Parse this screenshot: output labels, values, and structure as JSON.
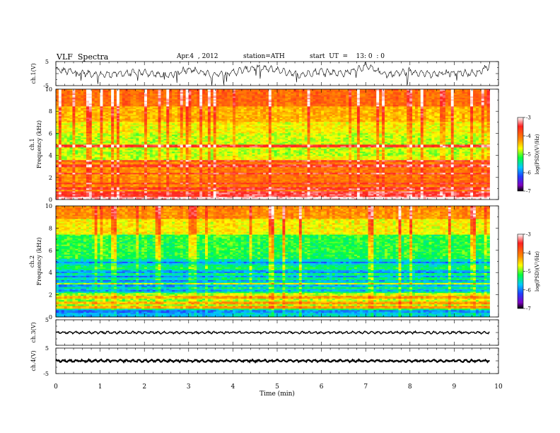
{
  "header": {
    "title": "VLF  Spectra",
    "date": "Apr.4  , 2012",
    "station": "station=ATH",
    "start": "start  UT  =    13: 0  : 0"
  },
  "colors": {
    "trace": "#000000",
    "background": "#ffffff"
  },
  "chart_data": [
    {
      "type": "line",
      "panel": "ch1-waveform",
      "ylabel": "ch.1(V)",
      "ylim": [
        -5,
        5
      ],
      "yticks": [
        "5",
        "-5"
      ],
      "x": [
        0,
        0.5,
        1,
        1.5,
        2,
        2.5,
        3,
        3.5,
        4,
        4.5,
        5,
        5.5,
        6,
        6.5,
        7,
        7.5,
        8,
        8.5,
        9,
        9.5,
        9.8
      ],
      "values": [
        1.5,
        0.5,
        -0.5,
        0,
        0.5,
        -1,
        2,
        -0.5,
        0.5,
        2.5,
        1.5,
        -0.5,
        1,
        0,
        3,
        -0.5,
        1,
        -0.5,
        0.5,
        0,
        3.5
      ]
    },
    {
      "type": "heatmap",
      "panel": "ch1-spectrogram",
      "ylabel": "ch.1\nFrequency  (kHz)",
      "ylim": [
        0,
        10
      ],
      "yticks": [
        "0",
        "2",
        "4",
        "6",
        "8",
        "10"
      ],
      "colorbar": {
        "label": "log(PSD)(V²/Hz)",
        "range": [
          -7,
          -3
        ],
        "ticks": [
          "-3",
          "-4",
          "-5",
          "-6",
          "-7"
        ]
      }
    },
    {
      "type": "heatmap",
      "panel": "ch2-spectrogram",
      "ylabel": "ch.2\nFrequency  (kHz)",
      "ylim": [
        0,
        10
      ],
      "yticks": [
        "0",
        "2",
        "4",
        "6",
        "8",
        "10"
      ],
      "colorbar": {
        "label": "log(PSD)(V²/Hz)",
        "range": [
          -7,
          -3
        ],
        "ticks": [
          "-3",
          "-4",
          "-5",
          "-6",
          "-7"
        ]
      }
    },
    {
      "type": "line",
      "panel": "ch3-waveform",
      "ylabel": "ch.3(V)",
      "ylim": [
        -5,
        5
      ],
      "yticks": [
        "5"
      ],
      "x": [
        0,
        9.8
      ],
      "values": [
        0,
        0
      ]
    },
    {
      "type": "line",
      "panel": "ch4-waveform",
      "ylabel": "ch.4(V)",
      "ylim": [
        -5,
        5
      ],
      "yticks": [
        "5",
        "-5"
      ],
      "x": [
        0,
        9.8
      ],
      "values": [
        0,
        0
      ]
    }
  ],
  "xaxis": {
    "label": "Time  (min)",
    "range": [
      0,
      10
    ],
    "ticks": [
      "0",
      "1",
      "2",
      "3",
      "4",
      "5",
      "6",
      "7",
      "8",
      "9",
      "10"
    ],
    "data_end": 9.8
  }
}
